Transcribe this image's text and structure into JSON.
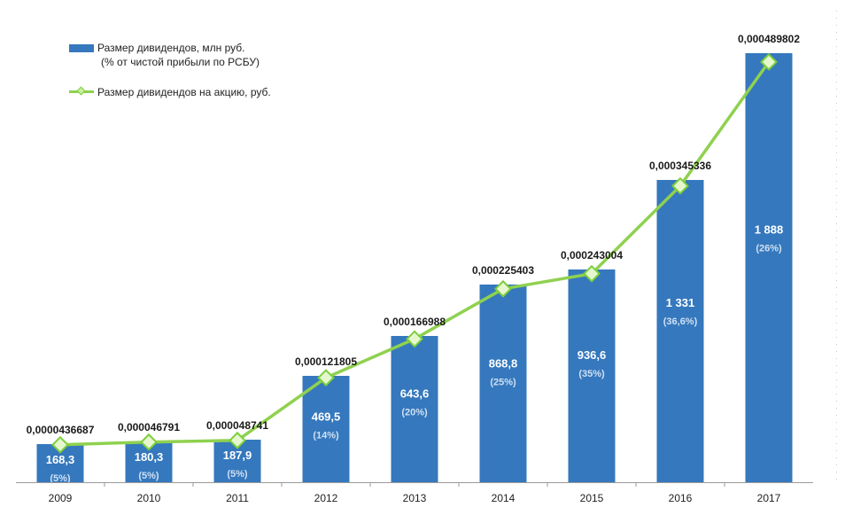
{
  "chart_data": {
    "type": "bar",
    "categories": [
      "2009",
      "2010",
      "2011",
      "2012",
      "2013",
      "2014",
      "2015",
      "2016",
      "2017"
    ],
    "series": [
      {
        "name": "Размер дивидендов, млн руб.",
        "kind": "bar",
        "values": [
          168.3,
          180.3,
          187.9,
          469.5,
          643.6,
          868.8,
          936.6,
          1331,
          1888
        ],
        "value_labels": [
          "168,3",
          "180,3",
          "187,9",
          "469,5",
          "643,6",
          "868,8",
          "936,6",
          "1 331",
          "1 888"
        ],
        "percent_labels": [
          "(5%)",
          "(5%)",
          "(5%)",
          "(14%)",
          "(20%)",
          "(25%)",
          "(35%)",
          "(36,6%)",
          "(26%)"
        ],
        "color": "#3578bd"
      },
      {
        "name": "Размер дивидендов на акцию, руб.",
        "kind": "line",
        "values": [
          4.36687e-05,
          4.6791e-05,
          4.8741e-05,
          0.000121805,
          0.000166988,
          0.000225403,
          0.000243004,
          0.000345336,
          0.000489802
        ],
        "value_labels": [
          "0,0000436687",
          "0,000046791",
          "0,000048741",
          "0,000121805",
          "0,000166988",
          "0,000225403",
          "0,000243004",
          "0,000345336",
          "0,000489802"
        ],
        "color": "#8fd14f"
      }
    ],
    "legend": {
      "bar_label": "Размер дивидендов, млн руб.",
      "bar_sublabel": "(% от чистой прибыли по РСБУ)",
      "line_label": "Размер дивидендов на акцию, руб.",
      "position": "top-left"
    },
    "ylim": [
      0,
      2000
    ],
    "y2lim": [
      0,
      0.00053
    ],
    "grid": false
  }
}
